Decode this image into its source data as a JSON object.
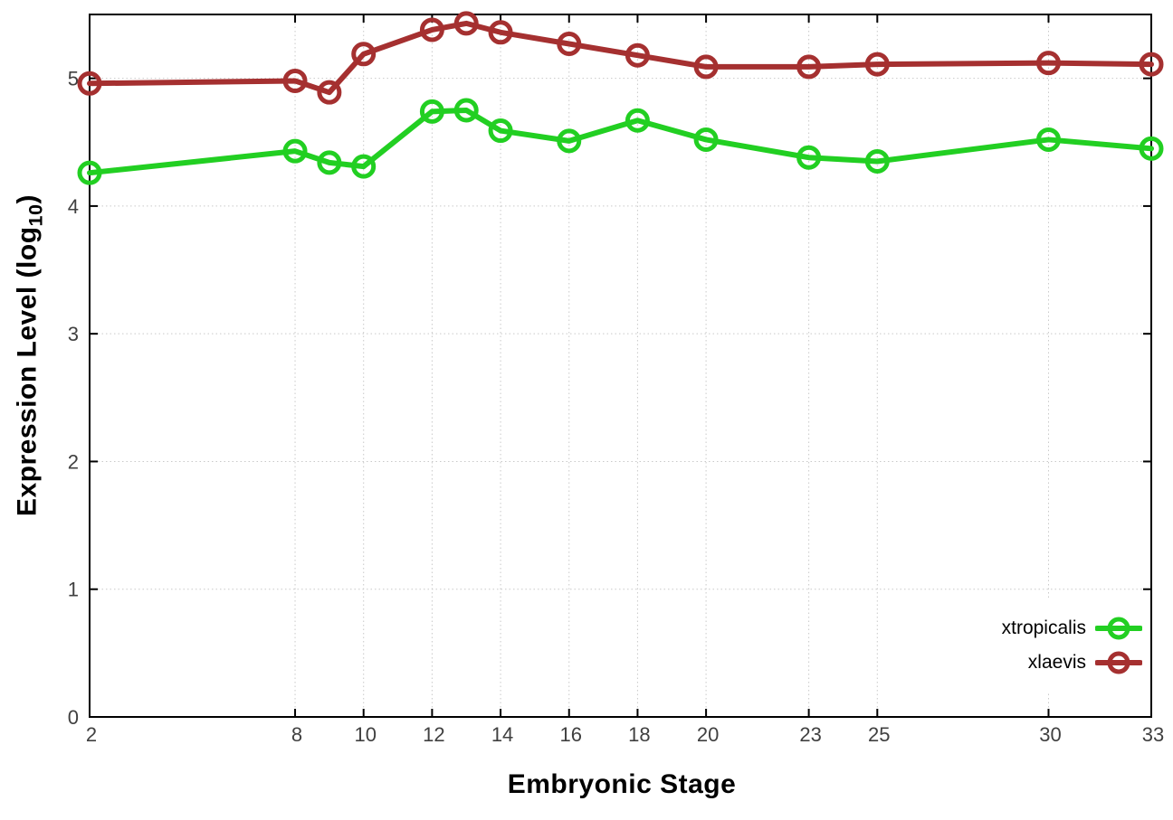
{
  "chart_data": {
    "type": "line",
    "title": "",
    "xlabel": "Embryonic Stage",
    "ylabel": "Expression Level (log10)",
    "ylabel_parts": {
      "prefix": "Expression Level (log",
      "sub": "10",
      "suffix": ")"
    },
    "x": [
      2,
      8,
      9,
      10,
      12,
      13,
      14,
      16,
      18,
      20,
      23,
      25,
      30,
      33
    ],
    "xticks": [
      2,
      8,
      10,
      12,
      14,
      16,
      18,
      20,
      23,
      25,
      30,
      33
    ],
    "yticks": [
      0,
      1,
      2,
      3,
      4,
      5
    ],
    "xlim": [
      2,
      33
    ],
    "ylim": [
      0,
      5.5
    ],
    "grid": true,
    "legend_position": "inside bottom-right",
    "marker": "open-circle",
    "series": [
      {
        "name": "xtropicalis",
        "color": "#22cf22",
        "values": [
          4.26,
          4.43,
          4.34,
          4.31,
          4.74,
          4.75,
          4.59,
          4.51,
          4.67,
          4.52,
          4.38,
          4.35,
          4.52,
          4.45
        ]
      },
      {
        "name": "xlaevis",
        "color": "#a53030",
        "values": [
          4.96,
          4.98,
          4.89,
          5.19,
          5.38,
          5.43,
          5.36,
          5.27,
          5.18,
          5.09,
          5.09,
          5.11,
          5.12,
          5.11
        ]
      }
    ],
    "colors": {
      "background": "#ffffff",
      "plot_border": "#000000",
      "grid": "#c9c9c9",
      "tick_label": "#404040",
      "axis_title": "#000000",
      "legend_text": "#000000"
    }
  }
}
